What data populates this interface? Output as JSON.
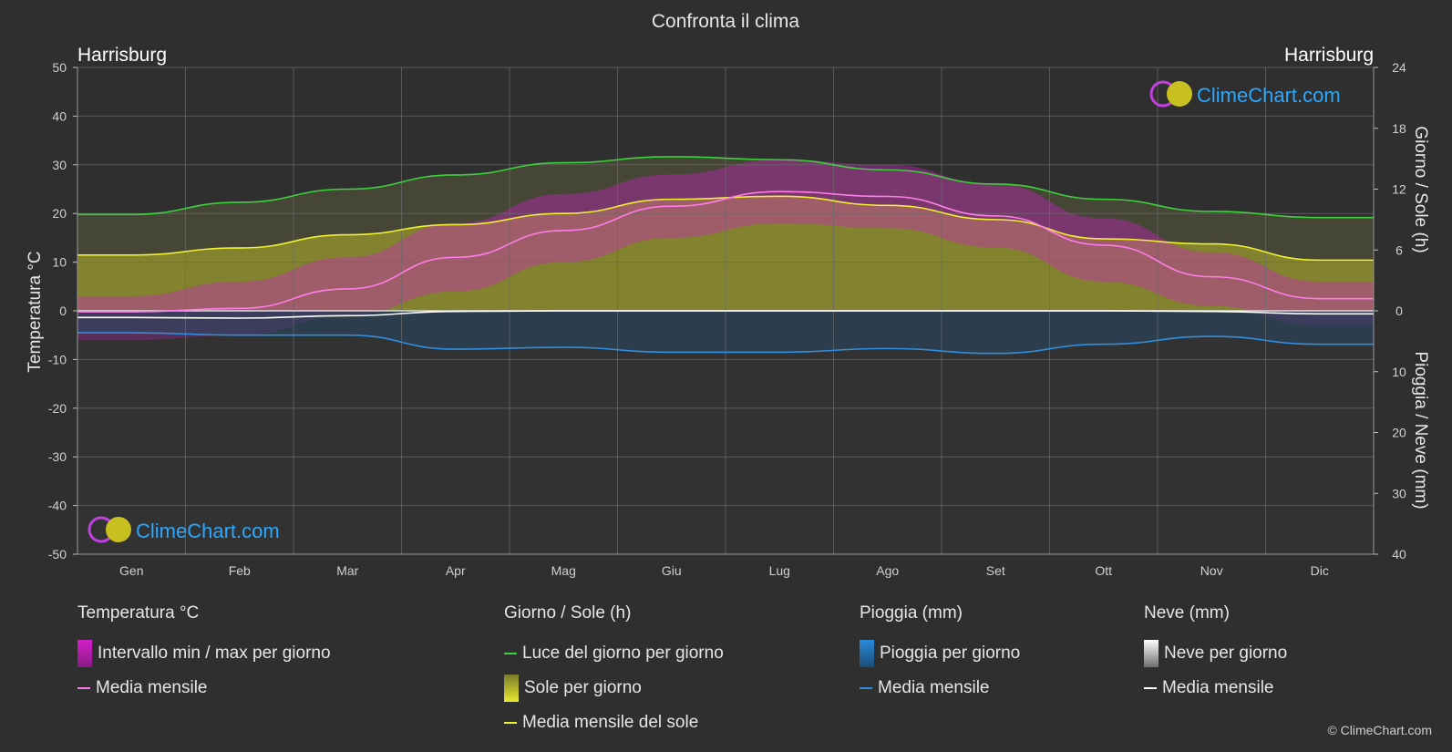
{
  "title": "Confronta il clima",
  "location_left": "Harrisburg",
  "location_right": "Harrisburg",
  "logo_text": "ClimeChart.com",
  "copyright": "© ClimeChart.com",
  "colors": {
    "background": "#2f2f2f",
    "temp_range": "#d020c8",
    "temp_mean": "#ff7de8",
    "daylight": "#3ed13e",
    "sunshine_fill": "#b5b52a",
    "sun_mean": "#f0f030",
    "rain": "#2a8ad8",
    "rain_mean": "#2f8fe0",
    "snow_mean": "#ffffff",
    "logo": "#2aa8ff"
  },
  "chart_data": {
    "type": "line",
    "categories": [
      "Gen",
      "Feb",
      "Mar",
      "Apr",
      "Mag",
      "Giu",
      "Lug",
      "Ago",
      "Set",
      "Ott",
      "Nov",
      "Dic"
    ],
    "axes": {
      "left": {
        "label": "Temperatura °C",
        "ticks": [
          50,
          40,
          30,
          20,
          10,
          0,
          -10,
          -20,
          -30,
          -40,
          -50
        ],
        "range": [
          -50,
          50
        ]
      },
      "right_top": {
        "label": "Giorno / Sole (h)",
        "ticks": [
          24,
          18,
          12,
          6,
          0
        ],
        "range": [
          0,
          24
        ]
      },
      "right_bottom": {
        "label": "Pioggia / Neve (mm)",
        "ticks": [
          0,
          10,
          20,
          30,
          40
        ],
        "range": [
          0,
          40
        ]
      }
    },
    "grid": true,
    "series": [
      {
        "name": "Luce del giorno per giorno",
        "axis": "hours",
        "values": [
          9.5,
          10.7,
          12.0,
          13.4,
          14.6,
          15.2,
          14.9,
          13.9,
          12.5,
          11.0,
          9.8,
          9.2
        ]
      },
      {
        "name": "Media mensile del sole",
        "axis": "hours",
        "values": [
          5.5,
          6.2,
          7.5,
          8.5,
          9.6,
          11.0,
          11.3,
          10.4,
          9.0,
          7.1,
          6.6,
          5.0
        ]
      },
      {
        "name": "Media mensile",
        "axis": "temp",
        "group": "temperature",
        "values": [
          -0.2,
          0.5,
          4.5,
          11.0,
          16.5,
          21.5,
          24.5,
          23.5,
          19.5,
          13.5,
          7.0,
          2.5
        ]
      },
      {
        "name": "Media mensile",
        "axis": "precip",
        "group": "rain",
        "values": [
          3.6,
          4.0,
          4.0,
          6.3,
          6.0,
          6.8,
          6.8,
          6.2,
          7.0,
          5.5,
          4.2,
          5.5
        ]
      },
      {
        "name": "Media mensile",
        "axis": "precip",
        "group": "snow",
        "values": [
          1.1,
          1.2,
          0.8,
          0.1,
          0,
          0,
          0,
          0,
          0,
          0,
          0.1,
          0.5
        ]
      }
    ],
    "temp_range": {
      "min": [
        -6,
        -5,
        -1,
        4,
        10,
        15,
        18,
        17,
        13,
        6,
        1,
        -3
      ],
      "max": [
        3,
        6,
        11,
        18,
        24,
        28,
        31,
        30,
        26,
        19,
        12,
        6
      ]
    }
  },
  "legend": {
    "groups": [
      {
        "header": "Temperatura °C",
        "items": [
          {
            "label": "Intervallo min / max per giorno",
            "swatch": "box",
            "color": "#d020c8"
          },
          {
            "label": "Media mensile",
            "swatch": "line",
            "color": "#ff7de8"
          }
        ]
      },
      {
        "header": "Giorno / Sole (h)",
        "items": [
          {
            "label": "Luce del giorno per giorno",
            "swatch": "line",
            "color": "#3ed13e"
          },
          {
            "label": "Sole per giorno",
            "swatch": "box",
            "color": "#c8c830"
          },
          {
            "label": "Media mensile del sole",
            "swatch": "line",
            "color": "#f0f030"
          }
        ]
      },
      {
        "header": "Pioggia (mm)",
        "items": [
          {
            "label": "Pioggia per giorno",
            "swatch": "box",
            "color": "#2a8ad8"
          },
          {
            "label": "Media mensile",
            "swatch": "line",
            "color": "#2f8fe0"
          }
        ]
      },
      {
        "header": "Neve (mm)",
        "items": [
          {
            "label": "Neve per giorno",
            "swatch": "box",
            "color": "#dddddd"
          },
          {
            "label": "Media mensile",
            "swatch": "line",
            "color": "#ffffff"
          }
        ]
      }
    ]
  }
}
